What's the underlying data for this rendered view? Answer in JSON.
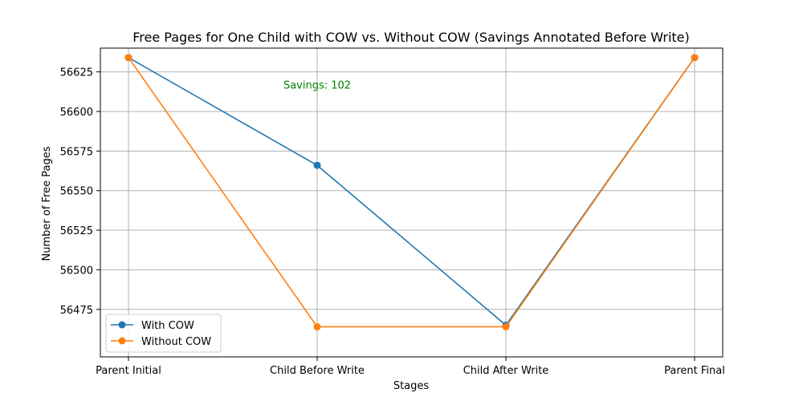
{
  "chart_data": {
    "type": "line",
    "title": "Free Pages for One Child with COW vs. Without COW (Savings Annotated Before Write)",
    "xlabel": "Stages",
    "ylabel": "Number of Free Pages",
    "categories": [
      "Parent Initial",
      "Child Before Write",
      "Child After Write",
      "Parent Final"
    ],
    "ylim": [
      56445,
      56640
    ],
    "yticks": [
      56475,
      56500,
      56525,
      56550,
      56575,
      56600,
      56625
    ],
    "grid": true,
    "legend_position": "lower-left",
    "series": [
      {
        "name": "With COW",
        "color": "#1f77b4",
        "values": [
          56634,
          56566,
          56465,
          56634
        ]
      },
      {
        "name": "Without COW",
        "color": "#ff7f0e",
        "values": [
          56634,
          56464,
          56464,
          56634
        ]
      }
    ],
    "annotations": [
      {
        "text": "Savings: 102",
        "x": "Child Before Write",
        "y": 56617,
        "color": "#008000"
      }
    ]
  }
}
